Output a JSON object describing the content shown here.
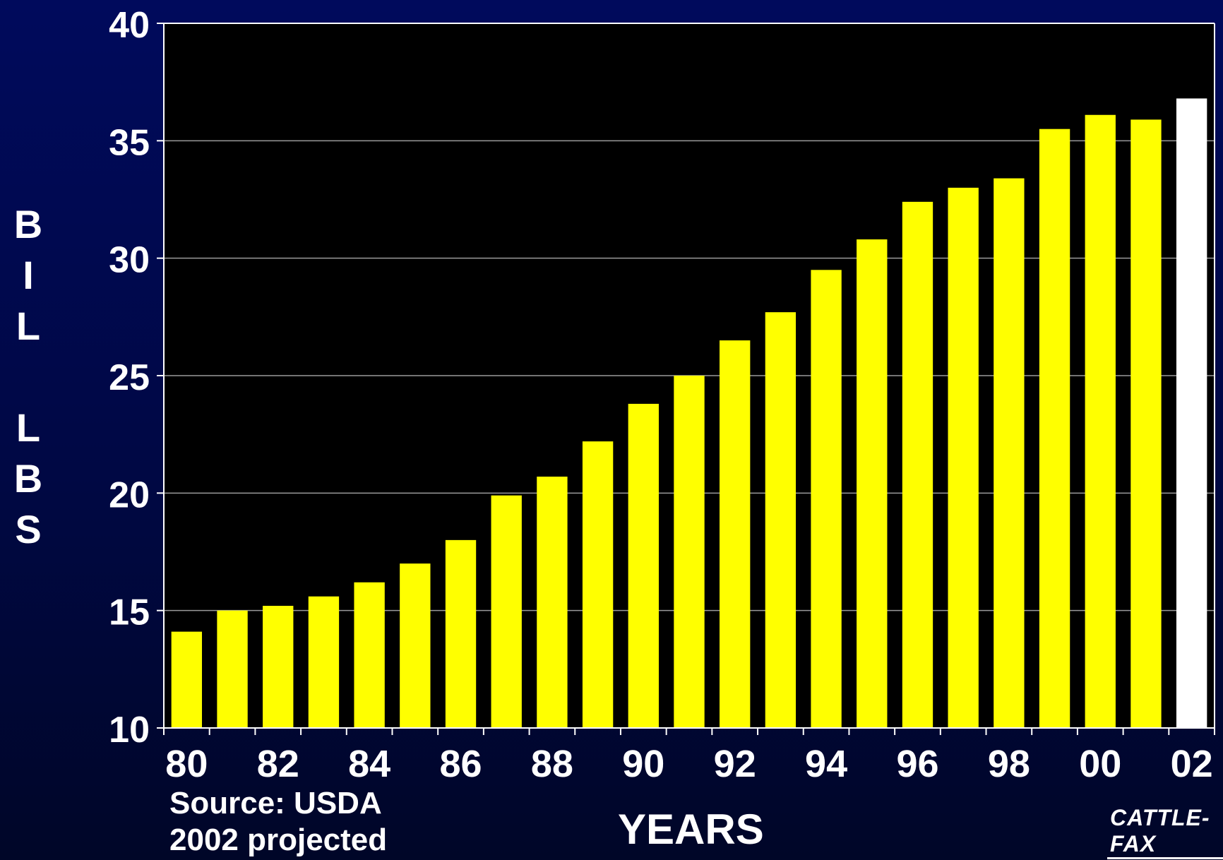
{
  "chart_data": {
    "type": "bar",
    "categories": [
      "80",
      "81",
      "82",
      "83",
      "84",
      "85",
      "86",
      "87",
      "88",
      "89",
      "90",
      "91",
      "92",
      "93",
      "94",
      "95",
      "96",
      "97",
      "98",
      "99",
      "00",
      "01",
      "02"
    ],
    "tick_labels": [
      "80",
      "82",
      "84",
      "86",
      "88",
      "90",
      "92",
      "94",
      "96",
      "98",
      "00",
      "02"
    ],
    "values": [
      14.1,
      15.0,
      15.2,
      15.6,
      16.2,
      17.0,
      18.0,
      19.9,
      20.7,
      22.2,
      23.8,
      25.0,
      26.5,
      27.7,
      29.5,
      30.8,
      32.4,
      33.0,
      33.4,
      35.5,
      36.1,
      35.9,
      36.8
    ],
    "projected_categories": [
      "02"
    ],
    "ylim": [
      10,
      40
    ],
    "yticks": [
      10,
      15,
      20,
      25,
      30,
      35,
      40
    ],
    "ylabel": "BIL LBS",
    "xlabel": "YEARS",
    "grid": true,
    "colors": {
      "bar": "#ffff00",
      "projected_bar": "#ffffff",
      "plot_background": "#000000",
      "gridline": "#9a9a9a"
    }
  },
  "ylabel_letters": [
    "B",
    "I",
    "L",
    "",
    "L",
    "B",
    "S"
  ],
  "source": {
    "line1": "Source: USDA",
    "line2": "2002 projected"
  },
  "logo_text": "CATTLE-FAX"
}
